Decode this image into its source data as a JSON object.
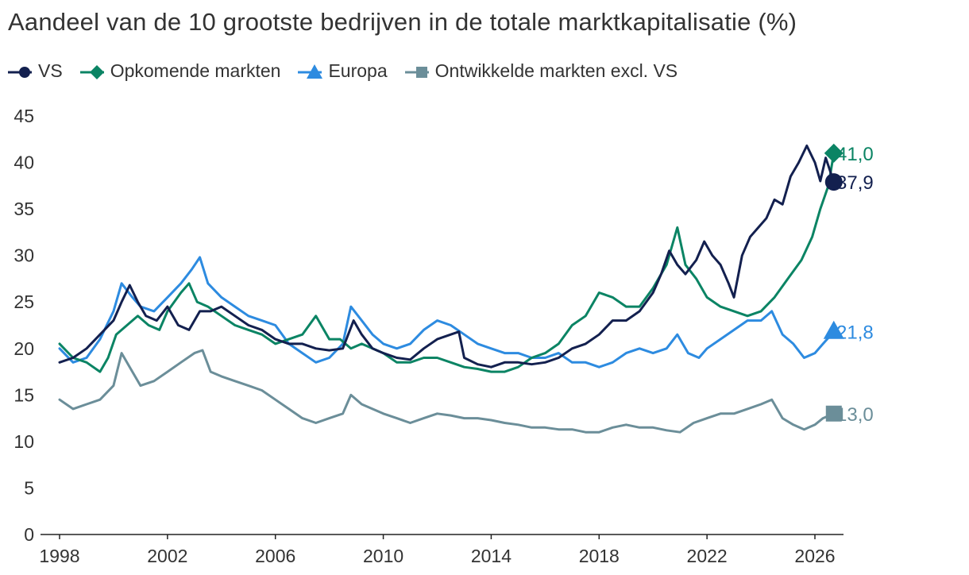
{
  "title": "Aandeel van de 10 grootste bedrijven in de totale marktkapitalisatie (%)",
  "colors": {
    "vs": "#13204f",
    "opkomende": "#0b8464",
    "europa": "#2d8be0",
    "ontwikkelde": "#6b8e99",
    "axis": "#222222",
    "text": "#333333"
  },
  "chart_data": {
    "type": "line",
    "title": "Aandeel van de 10 grootste bedrijven in de totale marktkapitalisatie (%)",
    "xlabel": "",
    "ylabel": "",
    "xlim": [
      1998,
      2027.5
    ],
    "ylim": [
      0,
      45
    ],
    "xticks": [
      1998,
      2002,
      2006,
      2010,
      2014,
      2018,
      2022,
      2026
    ],
    "yticks": [
      0,
      5,
      10,
      15,
      20,
      25,
      30,
      35,
      40,
      45
    ],
    "grid": false,
    "legend_position": "top-left",
    "series": [
      {
        "key": "vs",
        "name": "VS",
        "marker": "circle",
        "end_label": "37,9",
        "end_value": 37.9,
        "end_x": 2026.7,
        "points": [
          [
            1998.0,
            18.5
          ],
          [
            1998.5,
            19.0
          ],
          [
            1999.0,
            20.0
          ],
          [
            1999.5,
            21.5
          ],
          [
            2000.0,
            23.0
          ],
          [
            2000.3,
            25.0
          ],
          [
            2000.6,
            26.8
          ],
          [
            2000.9,
            25.0
          ],
          [
            2001.2,
            23.5
          ],
          [
            2001.6,
            23.0
          ],
          [
            2002.0,
            24.5
          ],
          [
            2002.4,
            22.5
          ],
          [
            2002.8,
            22.0
          ],
          [
            2003.2,
            24.0
          ],
          [
            2003.6,
            24.0
          ],
          [
            2004.0,
            24.5
          ],
          [
            2004.5,
            23.5
          ],
          [
            2005.0,
            22.5
          ],
          [
            2005.5,
            22.0
          ],
          [
            2006.0,
            21.0
          ],
          [
            2006.5,
            20.5
          ],
          [
            2007.0,
            20.5
          ],
          [
            2007.5,
            20.0
          ],
          [
            2008.0,
            19.8
          ],
          [
            2008.5,
            20.0
          ],
          [
            2008.9,
            23.0
          ],
          [
            2009.2,
            21.5
          ],
          [
            2009.6,
            20.0
          ],
          [
            2010.0,
            19.5
          ],
          [
            2010.5,
            19.0
          ],
          [
            2011.0,
            18.8
          ],
          [
            2011.5,
            20.0
          ],
          [
            2012.0,
            21.0
          ],
          [
            2012.5,
            21.5
          ],
          [
            2012.8,
            21.8
          ],
          [
            2013.0,
            19.0
          ],
          [
            2013.5,
            18.3
          ],
          [
            2014.0,
            18.0
          ],
          [
            2014.5,
            18.5
          ],
          [
            2015.0,
            18.5
          ],
          [
            2015.5,
            18.3
          ],
          [
            2016.0,
            18.5
          ],
          [
            2016.5,
            19.0
          ],
          [
            2017.0,
            20.0
          ],
          [
            2017.5,
            20.5
          ],
          [
            2018.0,
            21.5
          ],
          [
            2018.5,
            23.0
          ],
          [
            2019.0,
            23.0
          ],
          [
            2019.5,
            24.0
          ],
          [
            2020.0,
            26.0
          ],
          [
            2020.3,
            28.0
          ],
          [
            2020.6,
            30.5
          ],
          [
            2020.9,
            29.0
          ],
          [
            2021.2,
            28.0
          ],
          [
            2021.6,
            29.5
          ],
          [
            2021.9,
            31.5
          ],
          [
            2022.2,
            30.0
          ],
          [
            2022.5,
            29.0
          ],
          [
            2022.8,
            27.0
          ],
          [
            2023.0,
            25.5
          ],
          [
            2023.3,
            30.0
          ],
          [
            2023.6,
            32.0
          ],
          [
            2023.9,
            33.0
          ],
          [
            2024.2,
            34.0
          ],
          [
            2024.5,
            36.0
          ],
          [
            2024.8,
            35.5
          ],
          [
            2025.1,
            38.5
          ],
          [
            2025.4,
            40.0
          ],
          [
            2025.7,
            41.8
          ],
          [
            2026.0,
            40.0
          ],
          [
            2026.2,
            38.0
          ],
          [
            2026.4,
            40.5
          ],
          [
            2026.7,
            37.9
          ]
        ]
      },
      {
        "key": "opkomende",
        "name": "Opkomende markten",
        "marker": "diamond",
        "end_label": "41,0",
        "end_value": 41.0,
        "end_x": 2026.7,
        "points": [
          [
            1998.0,
            20.5
          ],
          [
            1998.5,
            19.0
          ],
          [
            1999.0,
            18.5
          ],
          [
            1999.5,
            17.5
          ],
          [
            1999.8,
            19.0
          ],
          [
            2000.1,
            21.5
          ],
          [
            2000.5,
            22.5
          ],
          [
            2000.9,
            23.5
          ],
          [
            2001.3,
            22.5
          ],
          [
            2001.7,
            22.0
          ],
          [
            2002.0,
            24.0
          ],
          [
            2002.5,
            26.0
          ],
          [
            2002.8,
            27.0
          ],
          [
            2003.1,
            25.0
          ],
          [
            2003.5,
            24.5
          ],
          [
            2004.0,
            23.5
          ],
          [
            2004.5,
            22.5
          ],
          [
            2005.0,
            22.0
          ],
          [
            2005.5,
            21.5
          ],
          [
            2006.0,
            20.5
          ],
          [
            2006.5,
            21.0
          ],
          [
            2007.0,
            21.5
          ],
          [
            2007.5,
            23.5
          ],
          [
            2008.0,
            21.0
          ],
          [
            2008.4,
            21.0
          ],
          [
            2008.8,
            20.0
          ],
          [
            2009.2,
            20.5
          ],
          [
            2009.6,
            20.0
          ],
          [
            2010.0,
            19.5
          ],
          [
            2010.5,
            18.5
          ],
          [
            2011.0,
            18.5
          ],
          [
            2011.5,
            19.0
          ],
          [
            2012.0,
            19.0
          ],
          [
            2012.5,
            18.5
          ],
          [
            2013.0,
            18.0
          ],
          [
            2013.5,
            17.8
          ],
          [
            2014.0,
            17.5
          ],
          [
            2014.5,
            17.5
          ],
          [
            2015.0,
            18.0
          ],
          [
            2015.5,
            19.0
          ],
          [
            2016.0,
            19.5
          ],
          [
            2016.5,
            20.5
          ],
          [
            2017.0,
            22.5
          ],
          [
            2017.5,
            23.5
          ],
          [
            2018.0,
            26.0
          ],
          [
            2018.5,
            25.5
          ],
          [
            2019.0,
            24.5
          ],
          [
            2019.5,
            24.5
          ],
          [
            2020.0,
            26.5
          ],
          [
            2020.5,
            29.0
          ],
          [
            2020.9,
            33.0
          ],
          [
            2021.2,
            29.0
          ],
          [
            2021.6,
            27.5
          ],
          [
            2022.0,
            25.5
          ],
          [
            2022.5,
            24.5
          ],
          [
            2023.0,
            24.0
          ],
          [
            2023.5,
            23.5
          ],
          [
            2024.0,
            24.0
          ],
          [
            2024.5,
            25.5
          ],
          [
            2025.0,
            27.5
          ],
          [
            2025.5,
            29.5
          ],
          [
            2025.9,
            32.0
          ],
          [
            2026.2,
            35.0
          ],
          [
            2026.5,
            37.5
          ],
          [
            2026.7,
            41.0
          ]
        ]
      },
      {
        "key": "europa",
        "name": "Europa",
        "marker": "triangle",
        "end_label": "21,8",
        "end_value": 21.8,
        "end_x": 2026.7,
        "points": [
          [
            1998.0,
            20.0
          ],
          [
            1998.5,
            18.5
          ],
          [
            1999.0,
            19.0
          ],
          [
            1999.5,
            21.0
          ],
          [
            2000.0,
            24.0
          ],
          [
            2000.3,
            27.0
          ],
          [
            2000.7,
            25.5
          ],
          [
            2001.0,
            24.5
          ],
          [
            2001.5,
            24.0
          ],
          [
            2002.0,
            25.5
          ],
          [
            2002.5,
            27.0
          ],
          [
            2002.9,
            28.5
          ],
          [
            2003.2,
            29.8
          ],
          [
            2003.5,
            27.0
          ],
          [
            2004.0,
            25.5
          ],
          [
            2004.5,
            24.5
          ],
          [
            2005.0,
            23.5
          ],
          [
            2005.5,
            23.0
          ],
          [
            2006.0,
            22.5
          ],
          [
            2006.5,
            20.5
          ],
          [
            2007.0,
            19.5
          ],
          [
            2007.5,
            18.5
          ],
          [
            2008.0,
            19.0
          ],
          [
            2008.5,
            20.5
          ],
          [
            2008.8,
            24.5
          ],
          [
            2009.2,
            23.0
          ],
          [
            2009.6,
            21.5
          ],
          [
            2010.0,
            20.5
          ],
          [
            2010.5,
            20.0
          ],
          [
            2011.0,
            20.5
          ],
          [
            2011.5,
            22.0
          ],
          [
            2012.0,
            23.0
          ],
          [
            2012.5,
            22.5
          ],
          [
            2013.0,
            21.5
          ],
          [
            2013.5,
            20.5
          ],
          [
            2014.0,
            20.0
          ],
          [
            2014.5,
            19.5
          ],
          [
            2015.0,
            19.5
          ],
          [
            2015.5,
            19.0
          ],
          [
            2016.0,
            19.0
          ],
          [
            2016.5,
            19.5
          ],
          [
            2017.0,
            18.5
          ],
          [
            2017.5,
            18.5
          ],
          [
            2018.0,
            18.0
          ],
          [
            2018.5,
            18.5
          ],
          [
            2019.0,
            19.5
          ],
          [
            2019.5,
            20.0
          ],
          [
            2020.0,
            19.5
          ],
          [
            2020.5,
            20.0
          ],
          [
            2020.9,
            21.5
          ],
          [
            2021.3,
            19.5
          ],
          [
            2021.7,
            19.0
          ],
          [
            2022.0,
            20.0
          ],
          [
            2022.5,
            21.0
          ],
          [
            2023.0,
            22.0
          ],
          [
            2023.5,
            23.0
          ],
          [
            2024.0,
            23.0
          ],
          [
            2024.4,
            24.0
          ],
          [
            2024.8,
            21.5
          ],
          [
            2025.2,
            20.5
          ],
          [
            2025.6,
            19.0
          ],
          [
            2026.0,
            19.5
          ],
          [
            2026.3,
            20.5
          ],
          [
            2026.7,
            21.8
          ]
        ]
      },
      {
        "key": "ontwikkelde",
        "name": "Ontwikkelde markten excl. VS",
        "marker": "square",
        "end_label": "13,0",
        "end_value": 13.0,
        "end_x": 2026.7,
        "points": [
          [
            1998.0,
            14.5
          ],
          [
            1998.5,
            13.5
          ],
          [
            1999.0,
            14.0
          ],
          [
            1999.5,
            14.5
          ],
          [
            2000.0,
            16.0
          ],
          [
            2000.3,
            19.5
          ],
          [
            2000.6,
            18.0
          ],
          [
            2001.0,
            16.0
          ],
          [
            2001.5,
            16.5
          ],
          [
            2002.0,
            17.5
          ],
          [
            2002.5,
            18.5
          ],
          [
            2003.0,
            19.5
          ],
          [
            2003.3,
            19.8
          ],
          [
            2003.6,
            17.5
          ],
          [
            2004.0,
            17.0
          ],
          [
            2004.5,
            16.5
          ],
          [
            2005.0,
            16.0
          ],
          [
            2005.5,
            15.5
          ],
          [
            2006.0,
            14.5
          ],
          [
            2006.5,
            13.5
          ],
          [
            2007.0,
            12.5
          ],
          [
            2007.5,
            12.0
          ],
          [
            2008.0,
            12.5
          ],
          [
            2008.5,
            13.0
          ],
          [
            2008.8,
            15.0
          ],
          [
            2009.2,
            14.0
          ],
          [
            2009.6,
            13.5
          ],
          [
            2010.0,
            13.0
          ],
          [
            2010.5,
            12.5
          ],
          [
            2011.0,
            12.0
          ],
          [
            2011.5,
            12.5
          ],
          [
            2012.0,
            13.0
          ],
          [
            2012.5,
            12.8
          ],
          [
            2013.0,
            12.5
          ],
          [
            2013.5,
            12.5
          ],
          [
            2014.0,
            12.3
          ],
          [
            2014.5,
            12.0
          ],
          [
            2015.0,
            11.8
          ],
          [
            2015.5,
            11.5
          ],
          [
            2016.0,
            11.5
          ],
          [
            2016.5,
            11.3
          ],
          [
            2017.0,
            11.3
          ],
          [
            2017.5,
            11.0
          ],
          [
            2018.0,
            11.0
          ],
          [
            2018.5,
            11.5
          ],
          [
            2019.0,
            11.8
          ],
          [
            2019.5,
            11.5
          ],
          [
            2020.0,
            11.5
          ],
          [
            2020.5,
            11.2
          ],
          [
            2021.0,
            11.0
          ],
          [
            2021.5,
            12.0
          ],
          [
            2022.0,
            12.5
          ],
          [
            2022.5,
            13.0
          ],
          [
            2023.0,
            13.0
          ],
          [
            2023.5,
            13.5
          ],
          [
            2024.0,
            14.0
          ],
          [
            2024.4,
            14.5
          ],
          [
            2024.8,
            12.5
          ],
          [
            2025.2,
            11.8
          ],
          [
            2025.6,
            11.3
          ],
          [
            2026.0,
            11.8
          ],
          [
            2026.3,
            12.5
          ],
          [
            2026.7,
            13.0
          ]
        ]
      }
    ]
  }
}
